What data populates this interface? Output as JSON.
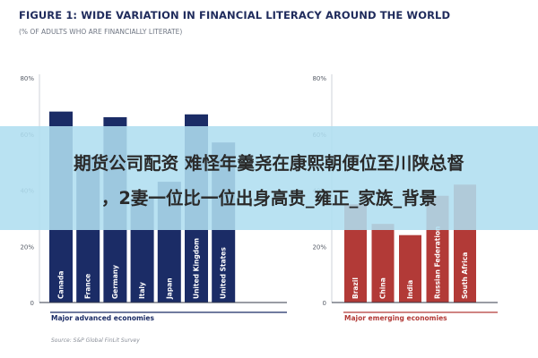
{
  "title": "FIGURE 1: WIDE VARIATION IN FINANCIAL LITERACY AROUND THE WORLD",
  "subtitle": "(% OF ADULTS WHO ARE FINANCIALLY LITERATE)",
  "source": "Source: S&P Global FinLit Survey",
  "overlay_text": {
    "line1": "期货公司配资 难怪年羹尧在康熙朝便位至川陕总督",
    "line2": "，2妻一位比一位出身高贵_雍正_家族_背景"
  },
  "colors": {
    "advanced": "#1b2c66",
    "emerging": "#b23a37",
    "axis_text": "#555b66",
    "grid": "#cfd3da"
  },
  "chart_data": [
    {
      "type": "bar",
      "group_label": "Major advanced economies",
      "categories": [
        "Canada",
        "France",
        "Germany",
        "Italy",
        "Japan",
        "United Kingdom",
        "United States"
      ],
      "values": [
        68,
        52,
        66,
        37,
        43,
        67,
        57
      ],
      "ylim": [
        0,
        80
      ],
      "yticks": [
        "0",
        "20%",
        "40%",
        "60%",
        "80%"
      ],
      "orientation": "vertical"
    },
    {
      "type": "bar",
      "group_label": "Major emerging economies",
      "categories": [
        "Brazil",
        "China",
        "India",
        "Russian Federation",
        "South Africa"
      ],
      "values": [
        35,
        28,
        24,
        38,
        42
      ],
      "ylim": [
        0,
        80
      ],
      "yticks": [
        "0",
        "20%",
        "40%",
        "60%",
        "80%"
      ],
      "orientation": "vertical"
    }
  ]
}
